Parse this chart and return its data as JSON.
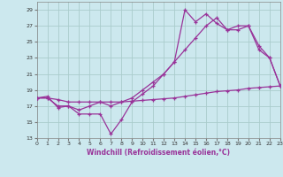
{
  "xlabel": "Windchill (Refroidissement éolien,°C)",
  "background_color": "#cce8ee",
  "grid_color": "#aacccc",
  "line_color": "#993399",
  "xlim": [
    0,
    23
  ],
  "ylim": [
    13,
    30
  ],
  "xticks": [
    0,
    1,
    2,
    3,
    4,
    5,
    6,
    7,
    8,
    9,
    10,
    11,
    12,
    13,
    14,
    15,
    16,
    17,
    18,
    19,
    20,
    21,
    22,
    23
  ],
  "yticks": [
    13,
    15,
    17,
    19,
    21,
    23,
    25,
    27,
    29
  ],
  "s1_x": [
    0,
    1,
    2,
    3,
    4,
    5,
    6,
    7,
    8,
    9,
    10,
    11,
    12,
    13,
    14,
    15,
    16,
    17,
    18,
    19,
    20,
    21,
    22,
    23
  ],
  "s1_y": [
    18.0,
    18.2,
    16.8,
    17.0,
    16.0,
    16.0,
    16.0,
    13.5,
    15.3,
    17.5,
    18.5,
    19.5,
    21.0,
    22.5,
    29.0,
    27.5,
    28.5,
    27.3,
    26.5,
    26.5,
    27.0,
    24.0,
    23.0,
    19.5
  ],
  "s2_x": [
    0,
    1,
    2,
    3,
    4,
    5,
    6,
    7,
    8,
    9,
    10,
    11,
    12,
    13,
    14,
    15,
    16,
    17,
    18,
    19,
    20,
    21,
    22,
    23
  ],
  "s2_y": [
    18.0,
    18.0,
    17.0,
    17.0,
    16.5,
    17.0,
    17.5,
    17.0,
    17.5,
    18.0,
    19.0,
    20.0,
    21.0,
    22.5,
    24.0,
    25.5,
    27.0,
    28.0,
    26.5,
    27.0,
    27.0,
    24.5,
    23.0,
    19.5
  ],
  "s3_x": [
    0,
    1,
    2,
    3,
    4,
    5,
    6,
    7,
    8,
    9,
    10,
    11,
    12,
    13,
    14,
    15,
    16,
    17,
    18,
    19,
    20,
    21,
    22,
    23
  ],
  "s3_y": [
    18.0,
    18.0,
    17.8,
    17.5,
    17.5,
    17.5,
    17.5,
    17.5,
    17.5,
    17.6,
    17.7,
    17.8,
    17.9,
    18.0,
    18.2,
    18.4,
    18.6,
    18.8,
    18.9,
    19.0,
    19.2,
    19.3,
    19.4,
    19.5
  ]
}
